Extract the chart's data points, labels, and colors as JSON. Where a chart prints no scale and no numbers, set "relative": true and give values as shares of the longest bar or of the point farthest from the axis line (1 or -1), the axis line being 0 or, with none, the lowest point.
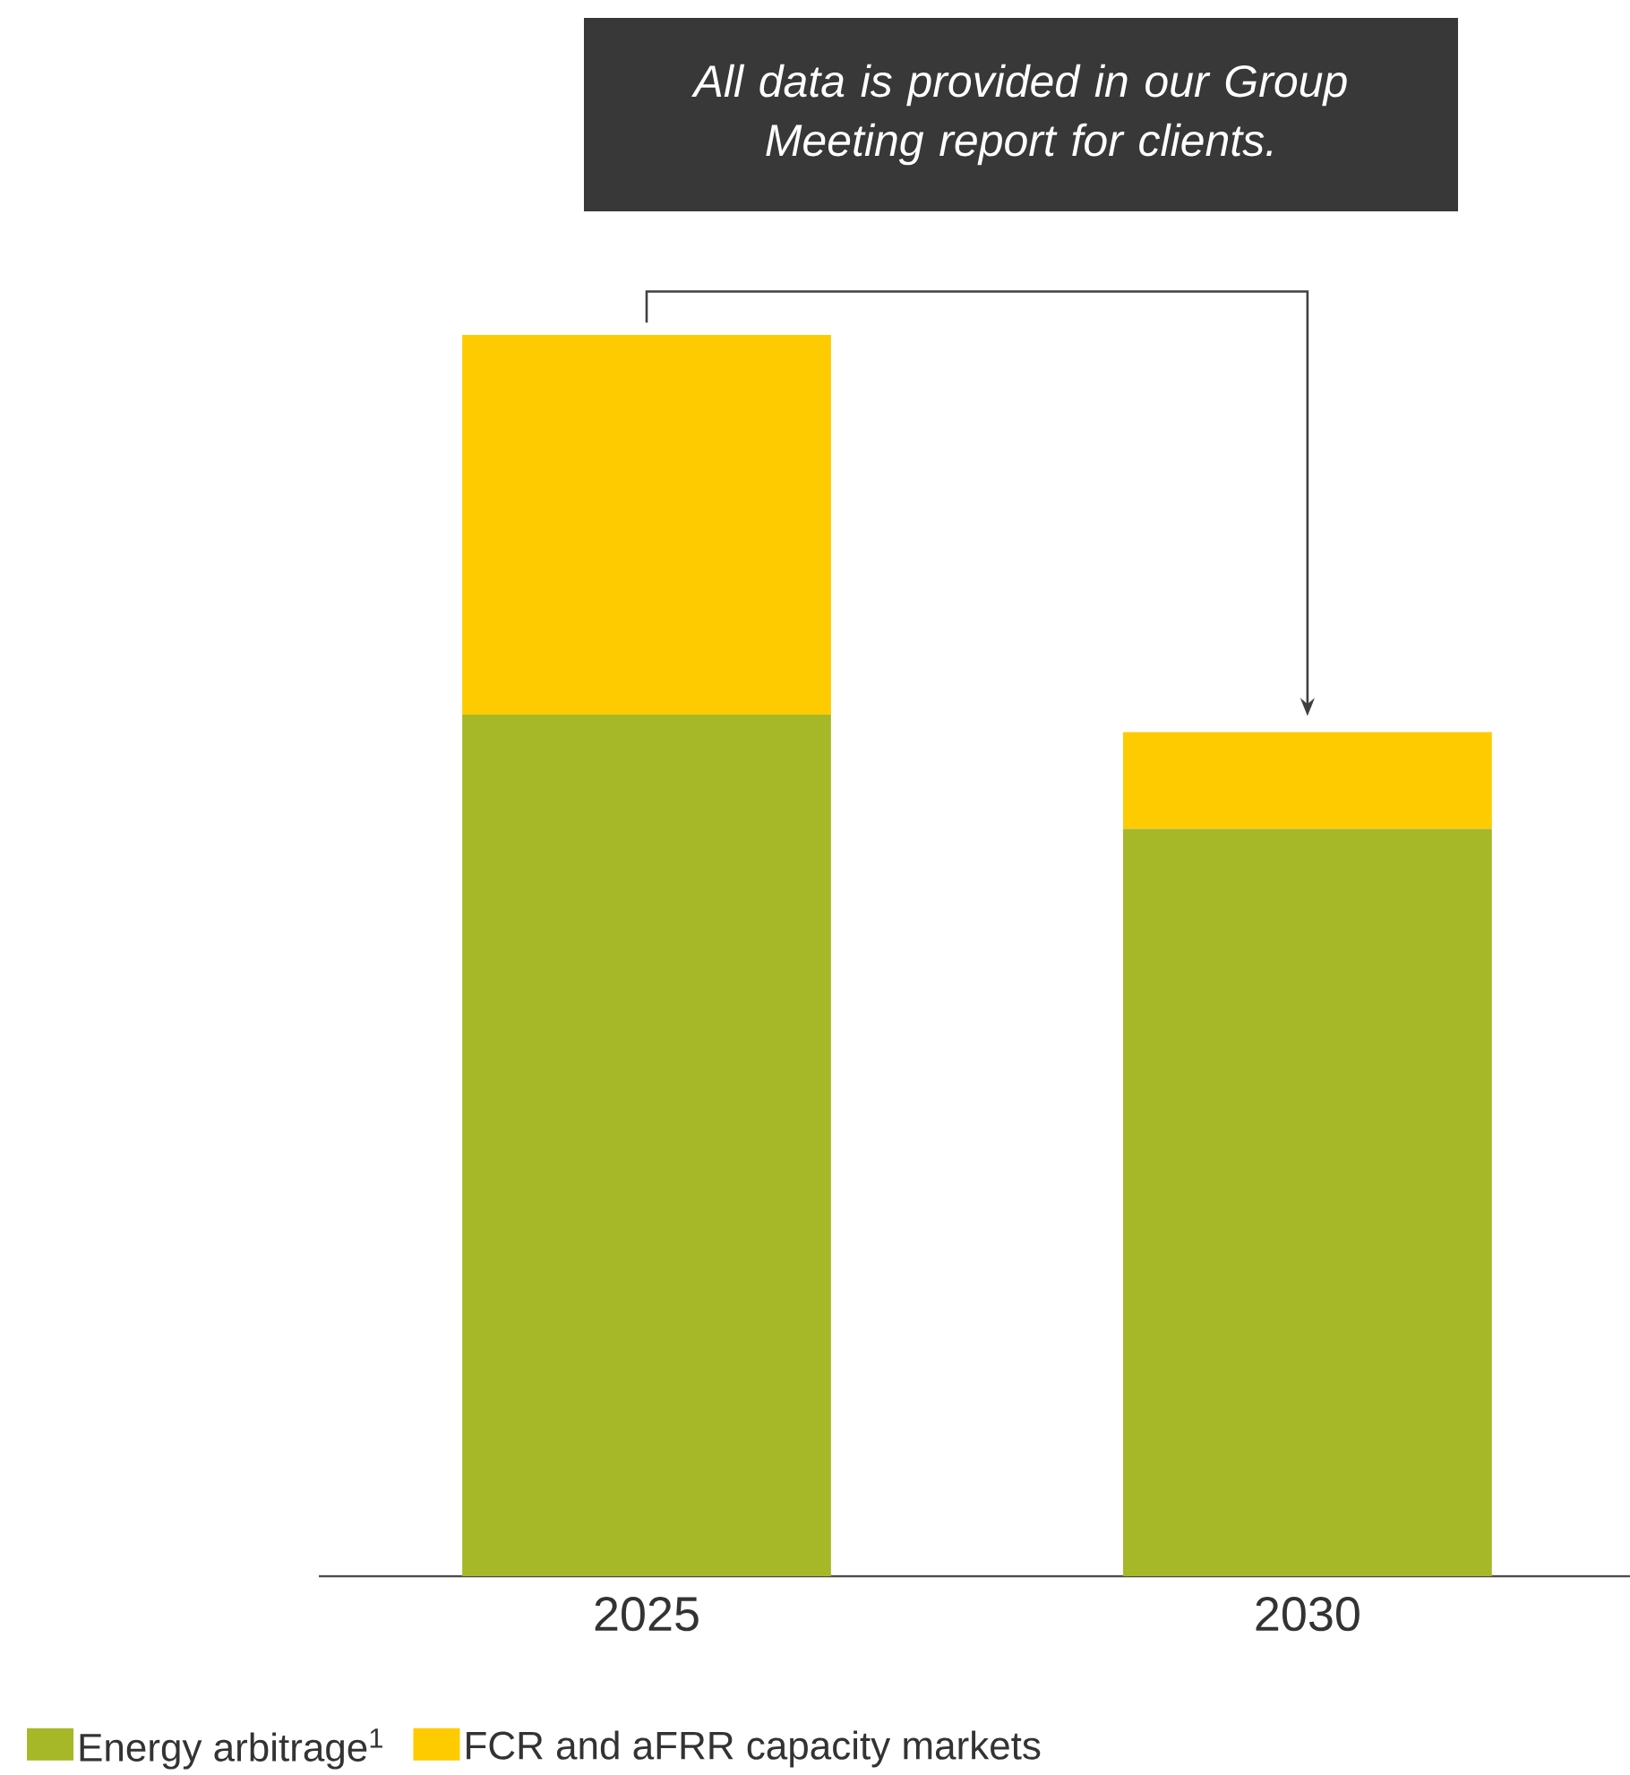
{
  "chart_data": {
    "type": "bar",
    "stacked": true,
    "relative": true,
    "legend": "bottom",
    "categories": [
      "2025",
      "2030"
    ],
    "series": [
      {
        "name": "Energy arbitrage$^{1}$",
        "color": "#a6b828",
        "values": [
          0.694,
          0.602
        ]
      },
      {
        "name": "FCR and aFRR capacity markets",
        "color": "#fecb00",
        "values": [
          0.306,
          0.078
        ]
      }
    ],
    "annotations": [
      "*All data is provided in our Group Meeting report for clients.*"
    ]
  }
}
